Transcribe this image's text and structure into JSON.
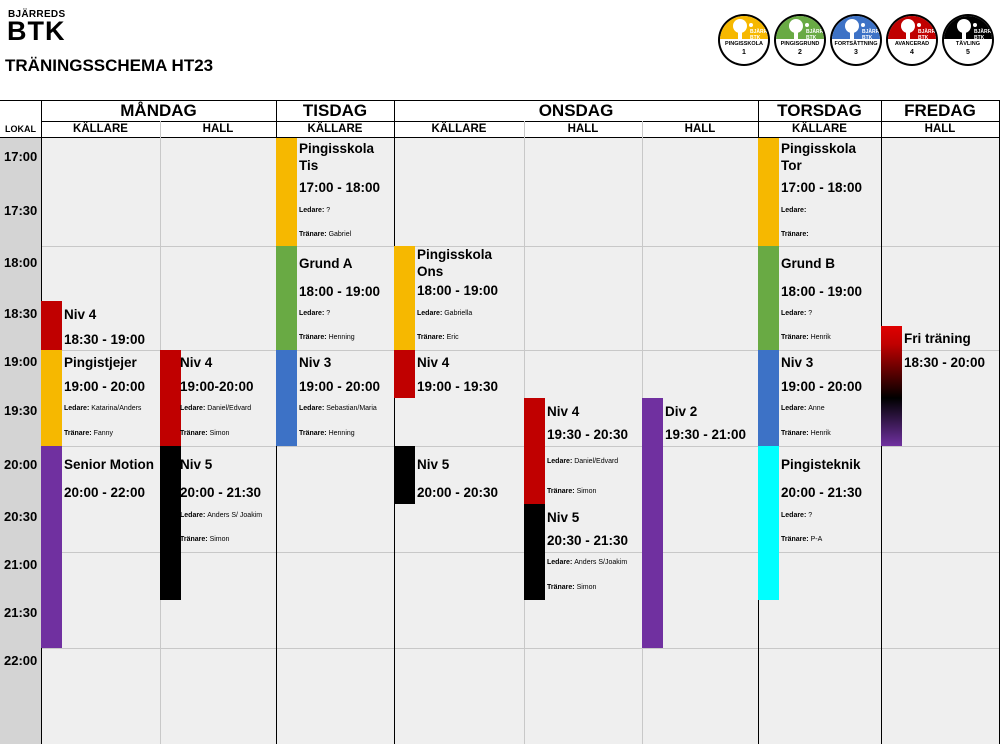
{
  "club": {
    "top": "BJÄRREDS",
    "main": "BTK"
  },
  "title": "TRÄNINGSSCHEMA HT23",
  "levels": [
    {
      "label": "PINGISSKOLA",
      "num": "1",
      "color": "#f6b800"
    },
    {
      "label": "PINGISGRUND",
      "num": "2",
      "color": "#69aa44"
    },
    {
      "label": "FORTSÄTTNING",
      "num": "3",
      "color": "#3d72c6"
    },
    {
      "label": "AVANCERAD",
      "num": "4",
      "color": "#c00000"
    },
    {
      "label": "TÄVLING",
      "num": "5",
      "color": "#000000"
    }
  ],
  "badge_mini": "BJÄRREDS BTK",
  "lokal_label": "LOKAL",
  "days": [
    "MÅNDAG",
    "TISDAG",
    "ONSDAG",
    "TORSDAG",
    "FREDAG"
  ],
  "locations": [
    "KÄLLARE",
    "HALL",
    "KÄLLARE",
    "KÄLLARE",
    "HALL",
    "HALL",
    "KÄLLARE",
    "HALL"
  ],
  "times": [
    "17:00",
    "17:30",
    "18:00",
    "18:30",
    "19:00",
    "19:30",
    "20:00",
    "20:30",
    "21:00",
    "21:30",
    "22:00"
  ],
  "sessions": [
    {
      "name": "Niv 4",
      "time": "18:30 - 19:00",
      "col": 0,
      "color": "#c00000"
    },
    {
      "name": "Pingistjejer",
      "time": "19:00 - 20:00",
      "ledare": "Katarina/Anders",
      "tranare": "Fanny",
      "col": 0,
      "color": "#f6b800"
    },
    {
      "name": "Senior Motion",
      "time": "20:00 - 22:00",
      "col": 0,
      "color": "#7030a0"
    },
    {
      "name": "Niv 4",
      "time": "19:00-20:00",
      "ledare": "Daniel/Edvard",
      "tranare": "Simon",
      "col": 1,
      "color": "#c00000"
    },
    {
      "name": "Niv 5",
      "time": "20:00 - 21:30",
      "ledare": "Anders S/ Joakim",
      "tranare": "Simon",
      "col": 1,
      "color": "#000000"
    },
    {
      "name": "Pingisskola Tis",
      "time": "17:00 - 18:00",
      "ledare": "?",
      "tranare": "Gabriel",
      "col": 2,
      "color": "#f6b800"
    },
    {
      "name": "Grund A",
      "time": "18:00 - 19:00",
      "ledare": "?",
      "tranare": "Henning",
      "col": 2,
      "color": "#69aa44"
    },
    {
      "name": "Niv 3",
      "time": "19:00 - 20:00",
      "ledare": "Sebastian/Maria",
      "tranare": "Henning",
      "col": 2,
      "color": "#3d72c6"
    },
    {
      "name": "Pingisskola Ons",
      "time": "18:00 - 19:00",
      "ledare": "Gabriella",
      "tranare": "Eric",
      "col": 3,
      "color": "#f6b800"
    },
    {
      "name": "Niv 4",
      "time": "19:00 - 19:30",
      "col": 3,
      "color": "#c00000"
    },
    {
      "name": "Niv 5",
      "time": "20:00 - 20:30",
      "col": 3,
      "color": "#000000"
    },
    {
      "name": "Niv 4",
      "time": "19:30 - 20:30",
      "ledare": "Daniel/Edvard",
      "tranare": "Simon",
      "col": 4,
      "color": "#c00000"
    },
    {
      "name": "Niv 5",
      "time": "20:30 - 21:30",
      "ledare": "Anders S/Joakim",
      "tranare": "Simon",
      "col": 4,
      "color": "#000000"
    },
    {
      "name": "Div 2",
      "time": "19:30 - 21:00",
      "col": 5,
      "color": "#7030a0"
    },
    {
      "name": "Pingisskola Tor",
      "time": "17:00 - 18:00",
      "ledare": "",
      "tranare": "",
      "col": 6,
      "color": "#f6b800"
    },
    {
      "name": "Grund B",
      "time": "18:00 - 19:00",
      "ledare": "?",
      "tranare": "Henrik",
      "col": 6,
      "color": "#69aa44"
    },
    {
      "name": "Niv 3",
      "time": "19:00 - 20:00",
      "ledare": "Anne",
      "tranare": "Henrik",
      "col": 6,
      "color": "#3d72c6"
    },
    {
      "name": "Pingisteknik",
      "time": "20:00 - 21:30",
      "ledare": "?",
      "tranare": "P-A",
      "col": 6,
      "color": "#00ffff"
    },
    {
      "name": "Fri träning",
      "time": "18:30 - 20:00",
      "col": 7,
      "color": "gradient-red-black-purple"
    }
  ],
  "labels": {
    "ledare": "Ledare",
    "tranare": "Tränare"
  }
}
